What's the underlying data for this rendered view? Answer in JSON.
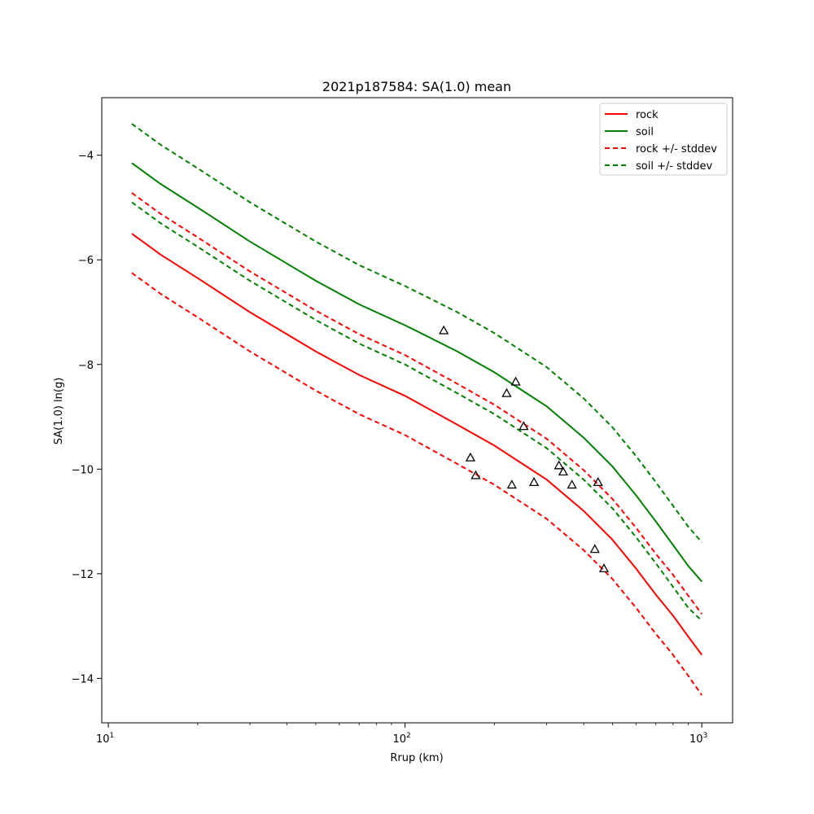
{
  "chart_data": {
    "type": "line",
    "title": "2021p187584: SA(1.0) mean",
    "xlabel": "Rrup (km)",
    "ylabel": "SA(1.0) ln(g)",
    "xscale": "log",
    "xlim": [
      9.5,
      1270
    ],
    "ylim": [
      -14.85,
      -2.9
    ],
    "x_ticks": [
      {
        "value": 10,
        "base": "10",
        "exp": "1"
      },
      {
        "value": 100,
        "base": "10",
        "exp": "2"
      },
      {
        "value": 1000,
        "base": "10",
        "exp": "3"
      }
    ],
    "y_ticks": [
      -14,
      -12,
      -10,
      -8,
      -6,
      -4
    ],
    "y_tick_labels": [
      "−14",
      "−12",
      "−10",
      "−8",
      "−6",
      "−4"
    ],
    "grid": false,
    "legend_position": "top-right",
    "x": [
      12,
      15,
      20,
      30,
      50,
      70,
      100,
      150,
      200,
      300,
      400,
      500,
      600,
      700,
      800,
      900,
      1000
    ],
    "series": [
      {
        "name": "rock",
        "color": "#ff0000",
        "dash": "solid",
        "values": [
          -5.5,
          -5.9,
          -6.35,
          -7.0,
          -7.75,
          -8.2,
          -8.6,
          -9.15,
          -9.55,
          -10.2,
          -10.8,
          -11.35,
          -11.9,
          -12.4,
          -12.8,
          -13.2,
          -13.55
        ]
      },
      {
        "name": "soil",
        "color": "#008000",
        "dash": "solid",
        "values": [
          -4.15,
          -4.55,
          -5.0,
          -5.65,
          -6.4,
          -6.85,
          -7.25,
          -7.75,
          -8.15,
          -8.8,
          -9.4,
          -9.95,
          -10.5,
          -11.0,
          -11.45,
          -11.85,
          -12.15
        ]
      },
      {
        "name": "rock +/- stddev",
        "color": "#ff0000",
        "dash": "dashed",
        "values": [
          -4.72,
          -5.12,
          -5.57,
          -6.22,
          -6.97,
          -7.42,
          -7.82,
          -8.37,
          -8.77,
          -9.42,
          -10.02,
          -10.57,
          -11.12,
          -11.62,
          -12.02,
          -12.42,
          -12.77
        ]
      },
      {
        "name": "",
        "color": "#ff0000",
        "dash": "dashed",
        "values": [
          -6.25,
          -6.65,
          -7.1,
          -7.75,
          -8.5,
          -8.95,
          -9.35,
          -9.9,
          -10.3,
          -10.95,
          -11.55,
          -12.1,
          -12.65,
          -13.15,
          -13.55,
          -13.95,
          -14.32
        ]
      },
      {
        "name": "soil +/- stddev",
        "color": "#008000",
        "dash": "dashed",
        "values": [
          -3.4,
          -3.8,
          -4.25,
          -4.9,
          -5.65,
          -6.1,
          -6.5,
          -7.0,
          -7.4,
          -8.05,
          -8.65,
          -9.2,
          -9.75,
          -10.25,
          -10.7,
          -11.1,
          -11.4
        ]
      },
      {
        "name": "",
        "color": "#008000",
        "dash": "dashed",
        "values": [
          -4.9,
          -5.3,
          -5.75,
          -6.4,
          -7.15,
          -7.6,
          -8.0,
          -8.55,
          -8.95,
          -9.6,
          -10.2,
          -10.75,
          -11.3,
          -11.8,
          -12.25,
          -12.65,
          -12.9
        ]
      }
    ],
    "observations": {
      "marker": "triangle",
      "color": "#000000",
      "x": [
        135,
        166,
        173,
        220,
        229,
        236,
        251,
        272,
        330,
        341,
        365,
        436,
        447,
        468
      ],
      "y": [
        -7.35,
        -9.78,
        -10.12,
        -8.55,
        -10.3,
        -8.33,
        -9.18,
        -10.25,
        -9.93,
        -10.05,
        -10.3,
        -11.53,
        -10.25,
        -11.9
      ]
    },
    "legend": [
      {
        "label": "rock",
        "color": "#ff0000",
        "dash": "solid"
      },
      {
        "label": "soil",
        "color": "#008000",
        "dash": "solid"
      },
      {
        "label": "rock +/- stddev",
        "color": "#ff0000",
        "dash": "dashed"
      },
      {
        "label": "soil +/- stddev",
        "color": "#008000",
        "dash": "dashed"
      }
    ]
  }
}
